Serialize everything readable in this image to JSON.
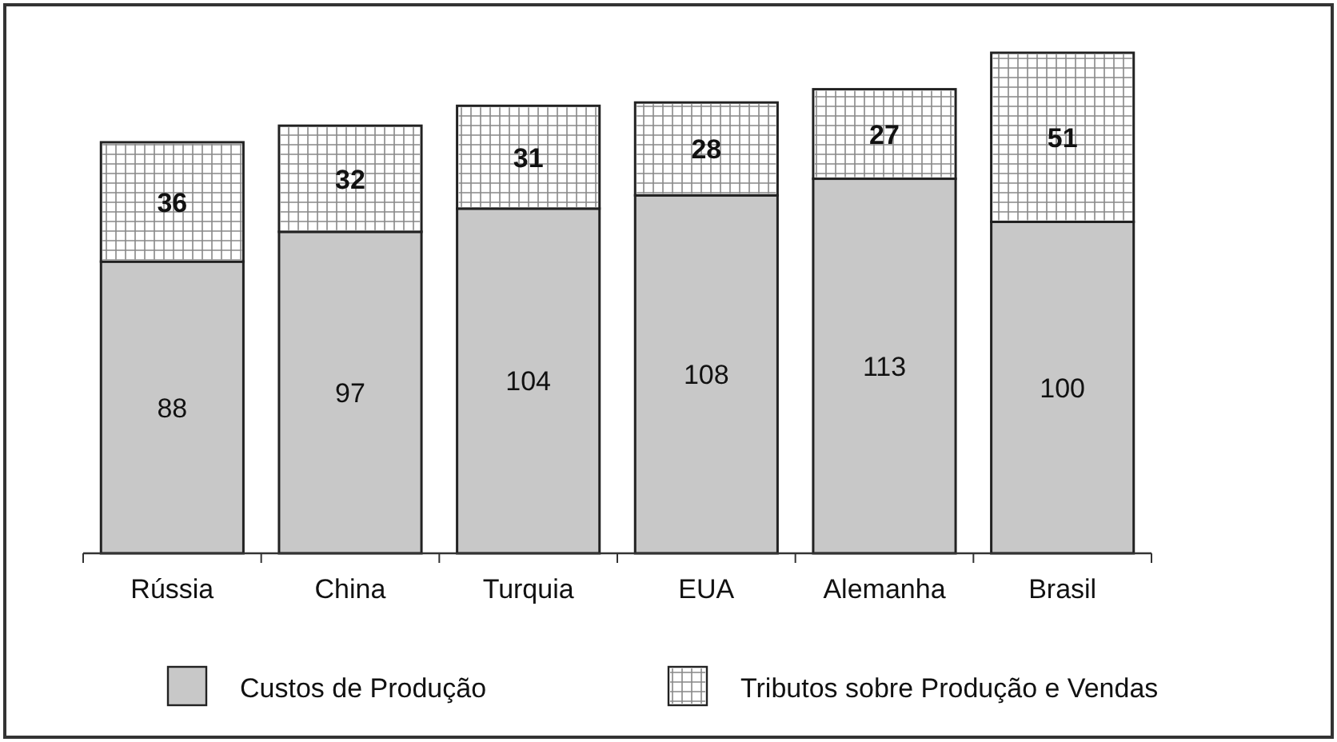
{
  "chart_data": {
    "type": "bar",
    "stacked": true,
    "categories": [
      "Rússia",
      "China",
      "Turquia",
      "EUA",
      "Alemanha",
      "Brasil"
    ],
    "series": [
      {
        "name": "Custos de Produção",
        "color": "#c8c8c8",
        "values": [
          88,
          97,
          104,
          108,
          113,
          100
        ]
      },
      {
        "name": "Tributos sobre Produção e Vendas",
        "color": "#ffffff",
        "values": [
          36,
          32,
          31,
          28,
          27,
          51
        ]
      }
    ],
    "data_labels": true,
    "legend": "bottom"
  }
}
